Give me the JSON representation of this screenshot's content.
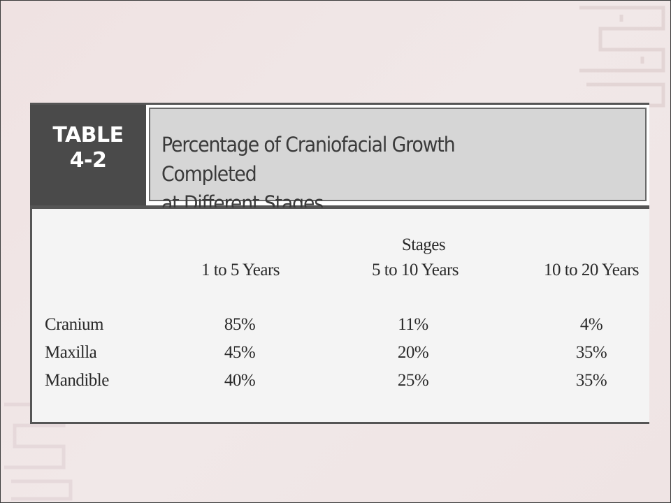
{
  "table": {
    "label_line1": "TABLE",
    "label_line2": "4-2",
    "title_line1": "Percentage of Craniofacial Growth Completed",
    "title_line2": "at Different Stages",
    "group_header": "Stages",
    "columns": [
      "1 to 5 Years",
      "5 to 10 Years",
      "10 to 20 Years"
    ],
    "rows": [
      {
        "label": "Cranium",
        "values": [
          "85%",
          "11%",
          "4%"
        ]
      },
      {
        "label": "Maxilla",
        "values": [
          "45%",
          "20%",
          "35%"
        ]
      },
      {
        "label": "Mandible",
        "values": [
          "40%",
          "25%",
          "35%"
        ]
      }
    ]
  },
  "colors": {
    "background": "#efe5e5",
    "label_box": "#4a4a4a",
    "title_box": "#d6d6d6",
    "table_body": "#f4f4f4"
  }
}
